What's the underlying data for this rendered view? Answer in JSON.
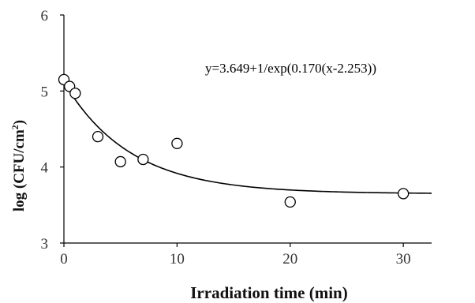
{
  "chart_data": {
    "type": "scatter",
    "xlabel": "Irradiation time (min)",
    "ylabel_main": "log (CFU/cm",
    "ylabel_sup": "2",
    "ylabel_close": ")",
    "xlim": [
      0,
      32.5
    ],
    "ylim": [
      3,
      6
    ],
    "xticks": [
      0,
      10,
      20,
      30
    ],
    "yticks": [
      3,
      4,
      5,
      6
    ],
    "grid": false,
    "annotation": "y=3.649+1/exp(0.170(x-2.253))",
    "fit": {
      "a": 3.649,
      "b": 0.17,
      "c": 2.253,
      "x_range": [
        0,
        32.5
      ]
    },
    "points": [
      {
        "x": 0,
        "y": 5.15
      },
      {
        "x": 0.5,
        "y": 5.06
      },
      {
        "x": 1,
        "y": 4.97
      },
      {
        "x": 3,
        "y": 4.4
      },
      {
        "x": 5,
        "y": 4.07
      },
      {
        "x": 7,
        "y": 4.1
      },
      {
        "x": 10,
        "y": 4.31
      },
      {
        "x": 20,
        "y": 3.54
      },
      {
        "x": 30,
        "y": 3.65
      }
    ]
  }
}
